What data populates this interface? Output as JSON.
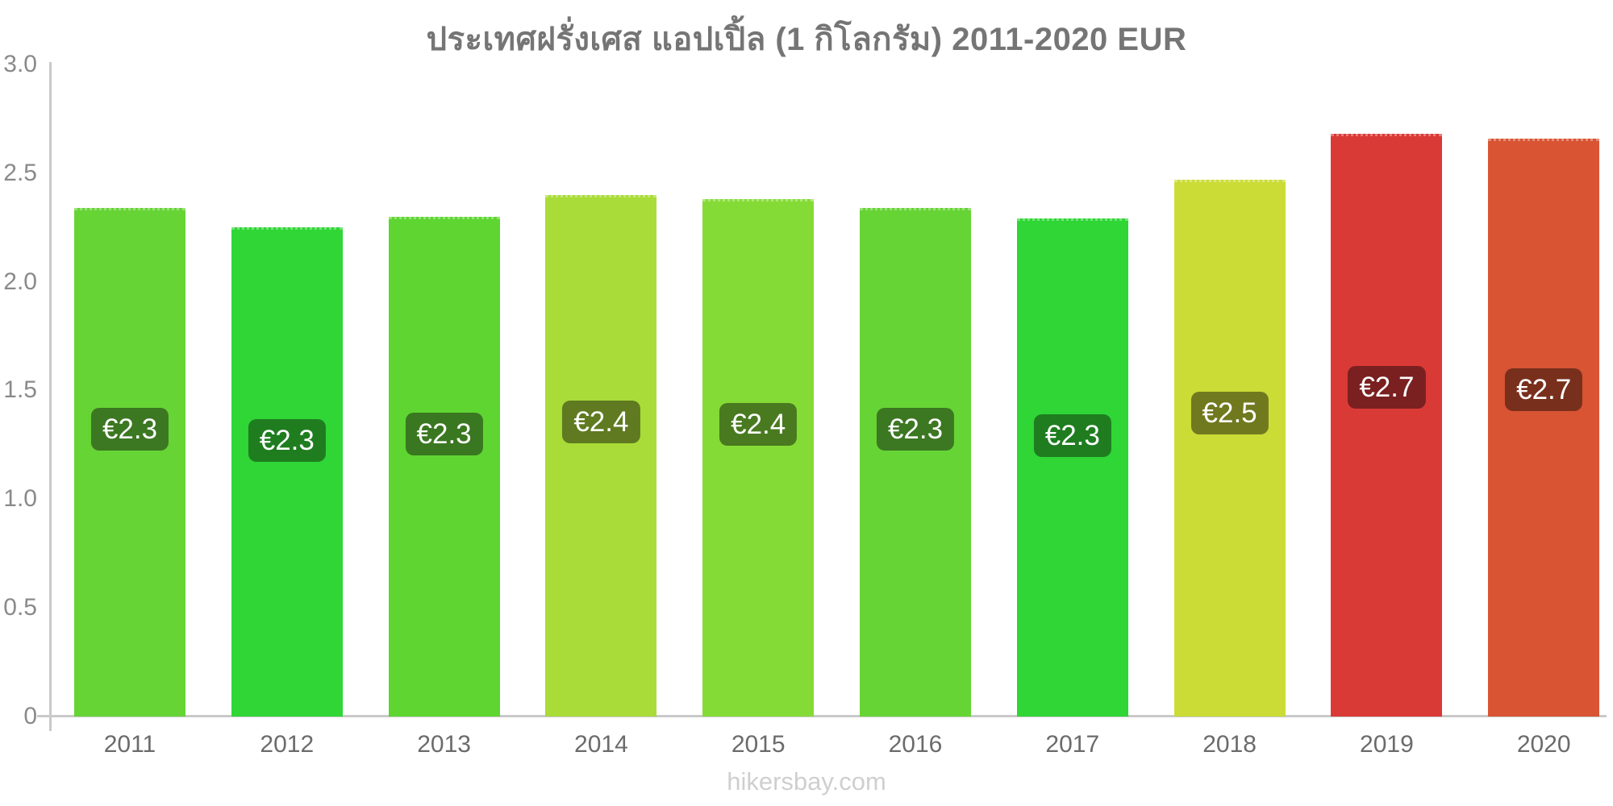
{
  "title": "ประเทศฝรั่งเศส แอปเปิ้ล (1 กิโลกรัม) 2011-2020 EUR",
  "footer": "hikersbay.com",
  "chart_data": {
    "type": "bar",
    "title": "ประเทศฝรั่งเศส แอปเปิ้ล (1 กิโลกรัม) 2011-2020 EUR",
    "xlabel": "",
    "ylabel": "",
    "currency": "EUR",
    "ylim": [
      0,
      3.0
    ],
    "grid": false,
    "legend": false,
    "yticks": [
      {
        "value": 3.0,
        "label": "3.0"
      },
      {
        "value": 2.5,
        "label": "2.5"
      },
      {
        "value": 2.0,
        "label": "2.0"
      },
      {
        "value": 1.5,
        "label": "1.5"
      },
      {
        "value": 1.0,
        "label": "1.0"
      },
      {
        "value": 0.5,
        "label": "0.5"
      },
      {
        "value": 0.0,
        "label": "0"
      }
    ],
    "categories": [
      "2011",
      "2012",
      "2013",
      "2014",
      "2015",
      "2016",
      "2017",
      "2018",
      "2019",
      "2020"
    ],
    "values": [
      2.34,
      2.25,
      2.3,
      2.4,
      2.38,
      2.34,
      2.29,
      2.47,
      2.68,
      2.66
    ],
    "data_labels": [
      "€2.3",
      "€2.3",
      "€2.3",
      "€2.4",
      "€2.4",
      "€2.3",
      "€2.3",
      "€2.5",
      "€2.7",
      "€2.7"
    ],
    "bar_colors": [
      "#66d435",
      "#2fd636",
      "#5ed531",
      "#a9dc38",
      "#85db36",
      "#66d435",
      "#2fd636",
      "#cbdc37",
      "#da3a36",
      "#d85433"
    ],
    "label_bg_colors": [
      "#3c7722",
      "#1f7d20",
      "#3a7721",
      "#5f7a20",
      "#497a20",
      "#3c7722",
      "#1f7d20",
      "#71791f",
      "#7a2020",
      "#78301d"
    ]
  }
}
